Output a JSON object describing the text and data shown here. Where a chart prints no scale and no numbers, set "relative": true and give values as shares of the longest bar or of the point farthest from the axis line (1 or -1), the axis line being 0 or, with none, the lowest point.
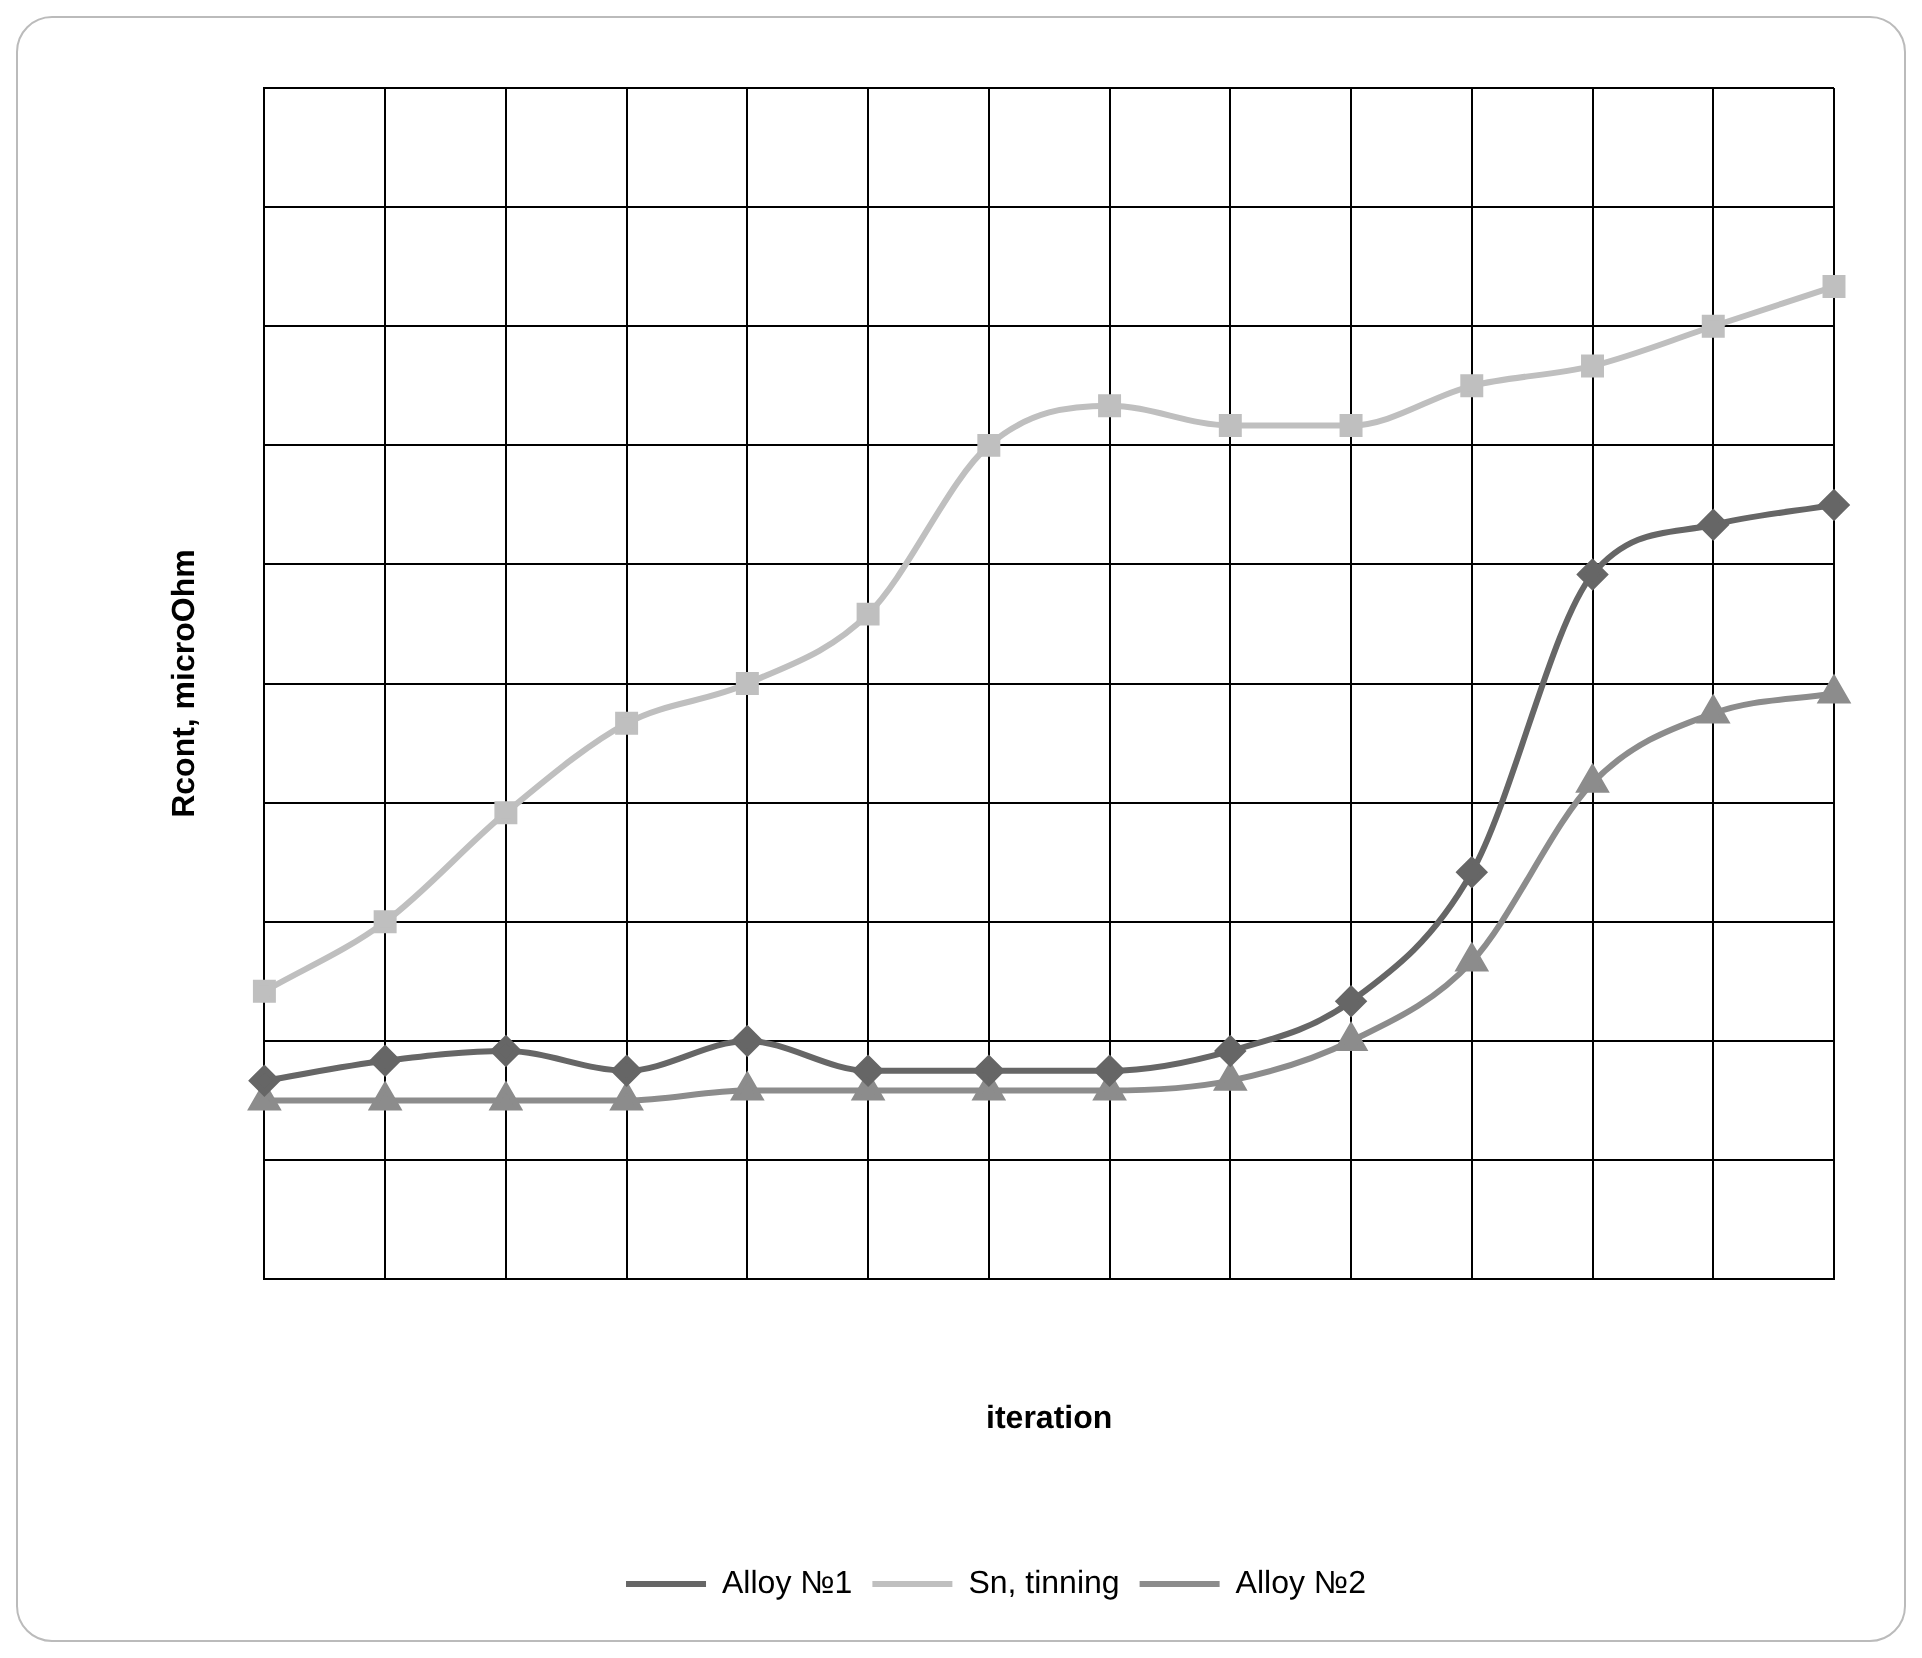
{
  "chart_data": {
    "type": "line",
    "relative": true,
    "xlabel": "iteration",
    "ylabel": "Rcont, microOhm",
    "categories": [
      null,
      null,
      null,
      null,
      null,
      null,
      null,
      null,
      null,
      null,
      null,
      null,
      null,
      null
    ],
    "series": [
      {
        "name": "Alloy №1",
        "color": "#666666",
        "marker": "diamond",
        "values": [
          0.2,
          0.22,
          0.23,
          0.21,
          0.24,
          0.21,
          0.21,
          0.21,
          0.23,
          0.28,
          0.41,
          0.71,
          0.76,
          0.78
        ]
      },
      {
        "name": "Sn, tinning",
        "color": "#bfbfbf",
        "marker": "square",
        "values": [
          0.29,
          0.36,
          0.47,
          0.56,
          0.6,
          0.67,
          0.84,
          0.88,
          0.86,
          0.86,
          0.9,
          0.92,
          0.96,
          1
        ]
      },
      {
        "name": "Alloy №2",
        "color": "#8c8c8c",
        "marker": "triangle",
        "values": [
          0.18,
          0.18,
          0.18,
          0.18,
          0.19,
          0.19,
          0.19,
          0.19,
          0.2,
          0.24,
          0.32,
          0.5,
          0.57,
          0.59
        ]
      }
    ],
    "grid": true,
    "legend": "bottom"
  }
}
